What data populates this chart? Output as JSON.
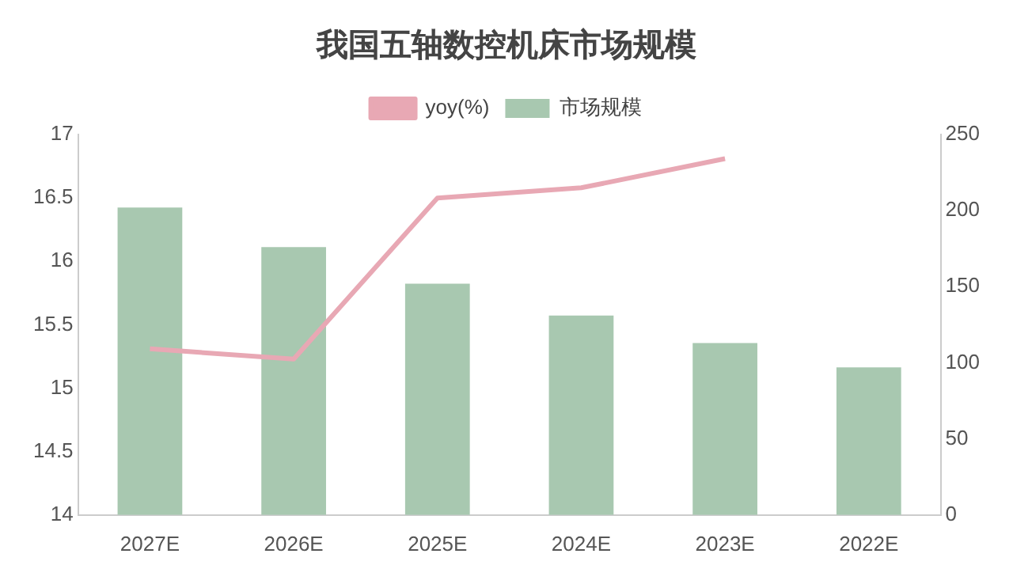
{
  "chart_data": {
    "type": "bar",
    "title": "我国五轴数控机床市场规模",
    "categories": [
      "2027E",
      "2026E",
      "2025E",
      "2024E",
      "2023E",
      "2022E"
    ],
    "series": [
      {
        "name": "yoy(%)",
        "type": "line",
        "color": "#e8a8b4",
        "values": [
          15.31,
          15.23,
          16.5,
          16.58,
          16.81,
          null
        ]
      },
      {
        "name": "市场规模",
        "axis": "y2",
        "color": "#a8c8b0",
        "values": [
          202,
          176,
          152,
          131,
          113,
          97
        ]
      }
    ],
    "ylim": [
      14,
      17
    ],
    "yticks": [
      14,
      14.5,
      15,
      15.5,
      16,
      16.5,
      17
    ],
    "y2lim": [
      0,
      250
    ],
    "y2ticks": [
      0,
      50,
      100,
      150,
      200,
      250
    ],
    "grid": false,
    "legend": "top",
    "marker": "none"
  }
}
